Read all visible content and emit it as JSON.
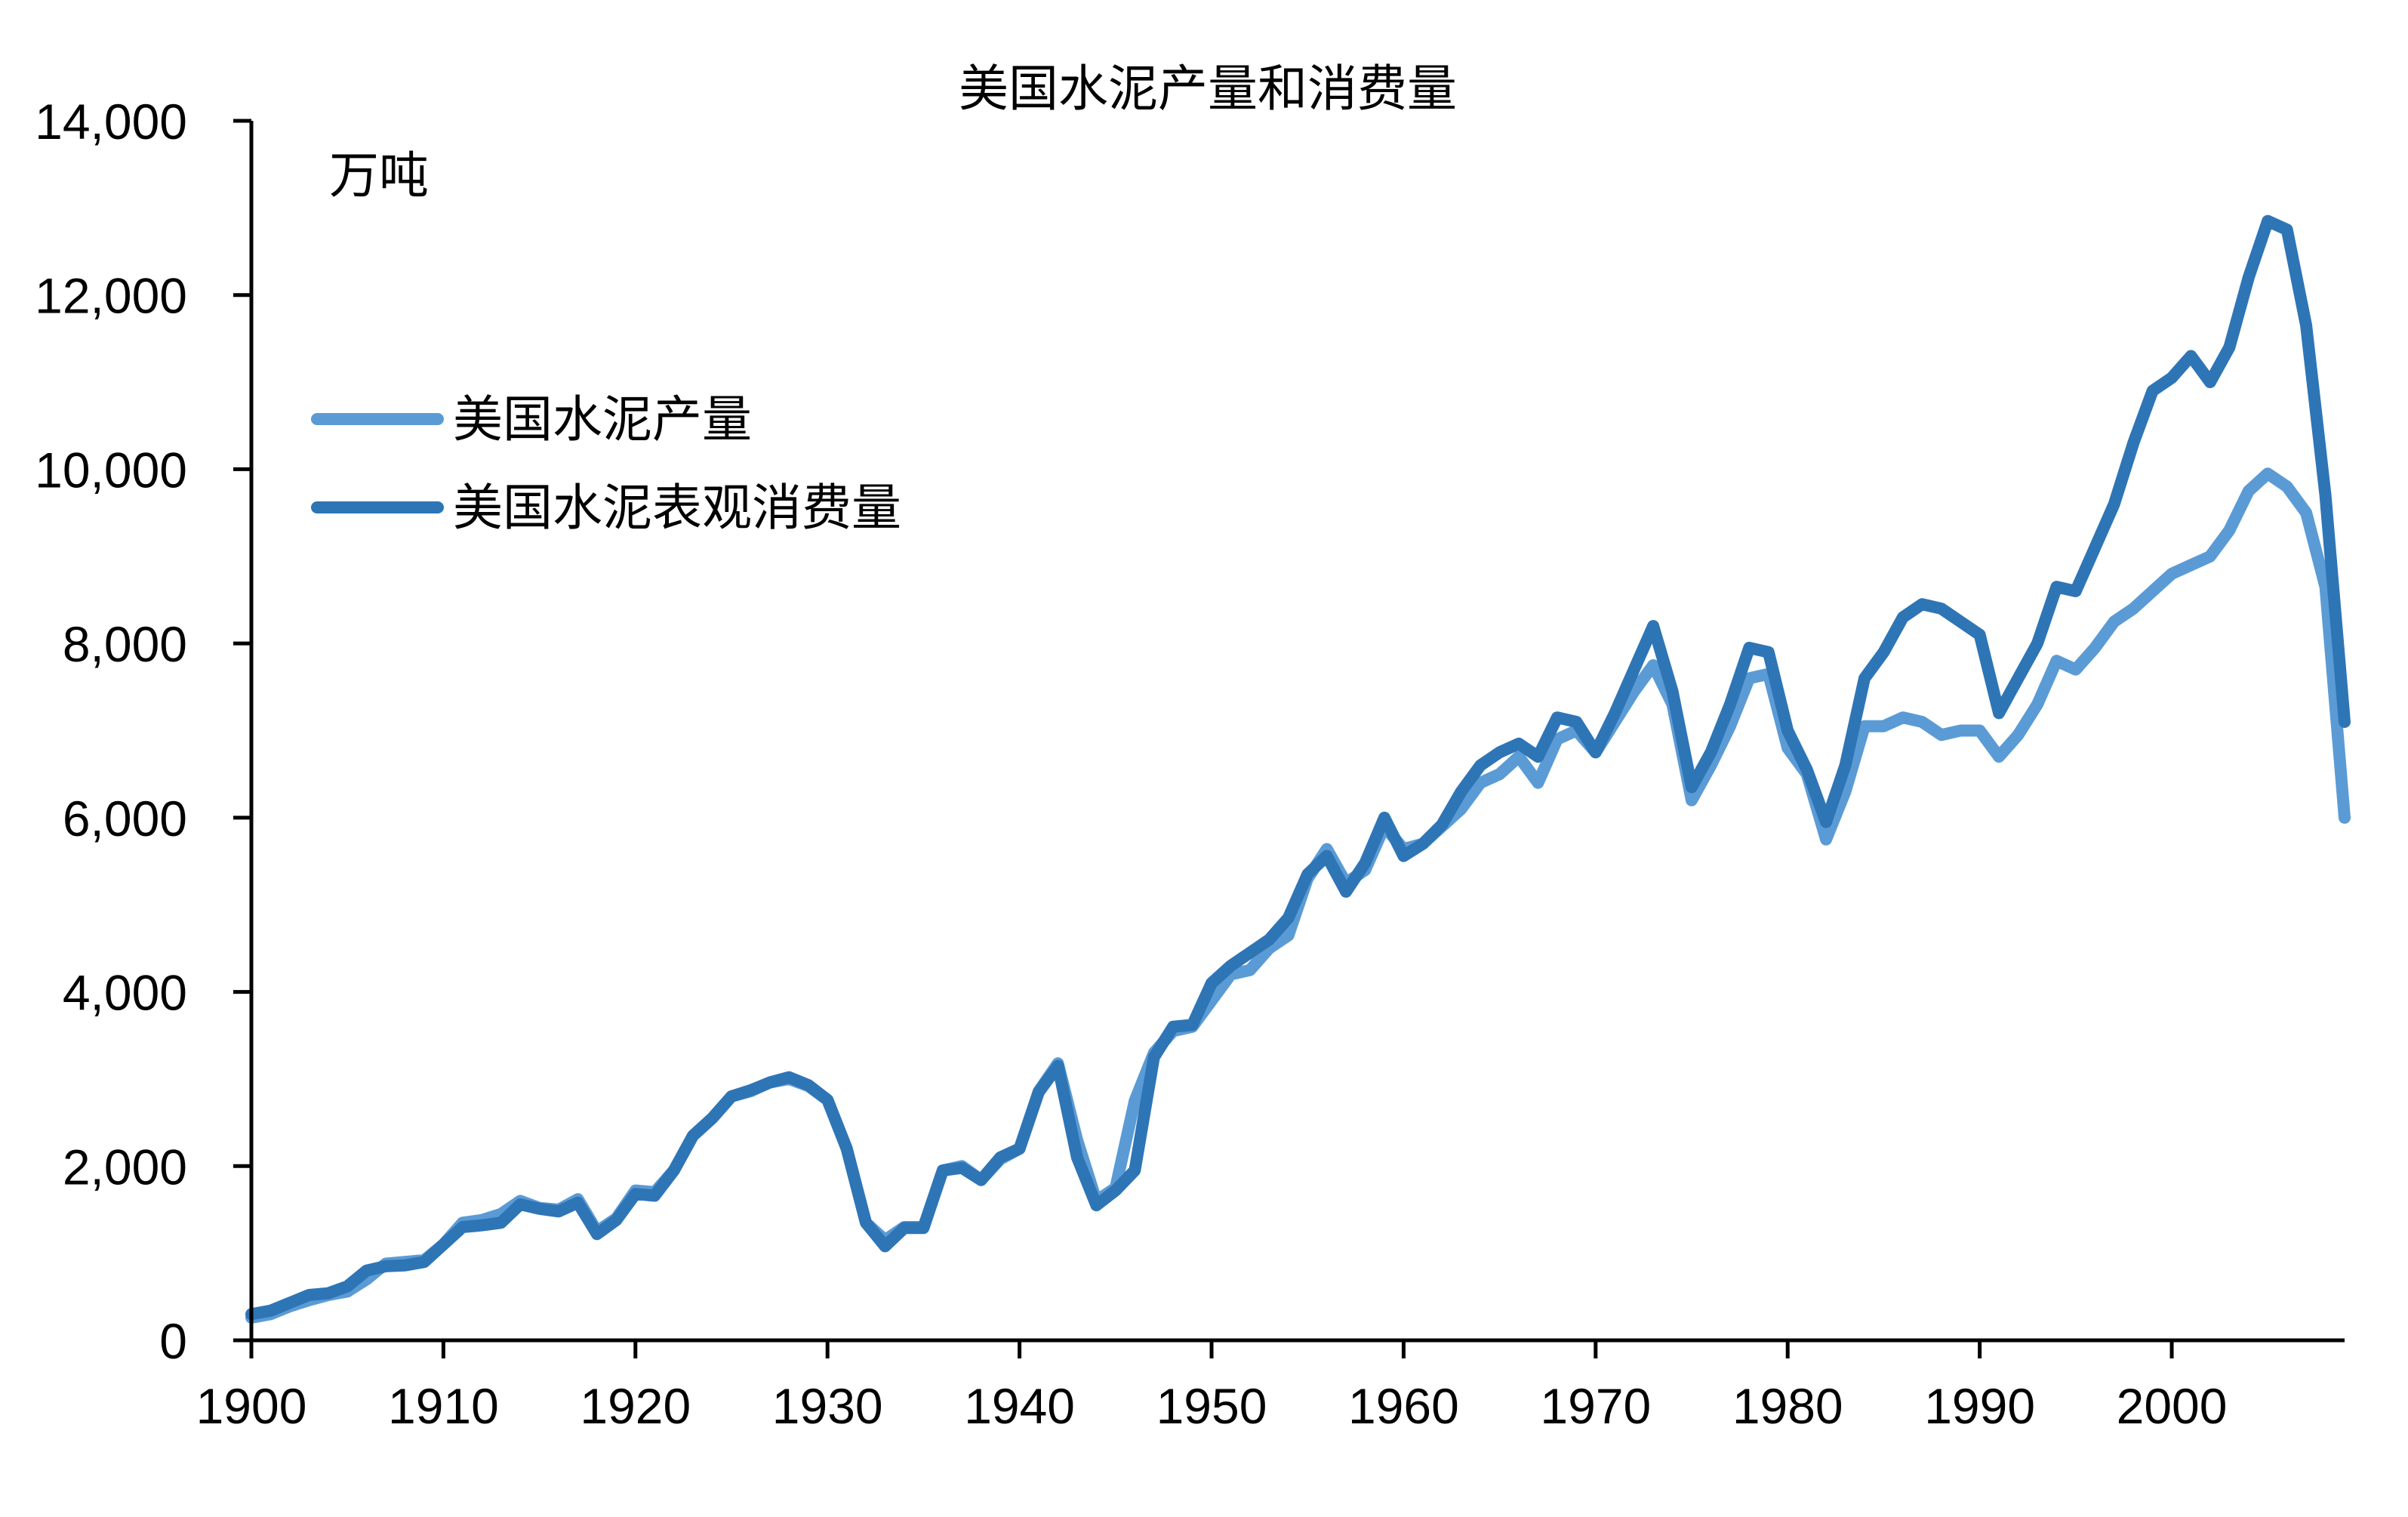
{
  "chart_data": {
    "type": "line",
    "title": "美国水泥产量和消费量",
    "unit_label": "万吨",
    "xlabel": "",
    "ylabel": "",
    "xlim": [
      1900,
      2009
    ],
    "ylim": [
      0,
      14000
    ],
    "x_ticks": [
      1900,
      1910,
      1920,
      1930,
      1940,
      1950,
      1960,
      1970,
      1980,
      1990,
      2000
    ],
    "y_ticks": [
      0,
      2000,
      4000,
      6000,
      8000,
      10000,
      12000,
      14000
    ],
    "y_tick_labels": [
      "0",
      "2,000",
      "4,000",
      "6,000",
      "8,000",
      "10,000",
      "12,000",
      "14,000"
    ],
    "grid": false,
    "legend_position": "upper-left",
    "x": [
      1900,
      1901,
      1902,
      1903,
      1904,
      1905,
      1906,
      1907,
      1908,
      1909,
      1910,
      1911,
      1912,
      1913,
      1914,
      1915,
      1916,
      1917,
      1918,
      1919,
      1920,
      1921,
      1922,
      1923,
      1924,
      1925,
      1926,
      1927,
      1928,
      1929,
      1930,
      1931,
      1932,
      1933,
      1934,
      1935,
      1936,
      1937,
      1938,
      1939,
      1940,
      1941,
      1942,
      1943,
      1944,
      1945,
      1946,
      1947,
      1948,
      1949,
      1950,
      1951,
      1952,
      1953,
      1954,
      1955,
      1956,
      1957,
      1958,
      1959,
      1960,
      1961,
      1962,
      1963,
      1964,
      1965,
      1966,
      1967,
      1968,
      1969,
      1970,
      1971,
      1972,
      1973,
      1974,
      1975,
      1976,
      1977,
      1978,
      1979,
      1980,
      1981,
      1982,
      1983,
      1984,
      1985,
      1986,
      1987,
      1988,
      1989,
      1990,
      1991,
      1992,
      1993,
      1994,
      1995,
      1996,
      1997,
      1998,
      1999,
      2000,
      2001,
      2002,
      2003,
      2004,
      2005,
      2006,
      2007,
      2008,
      2009
    ],
    "series": [
      {
        "name": "美国水泥产量",
        "color": "#5b9bd5",
        "values": [
          260,
          300,
          390,
          460,
          520,
          560,
          700,
          880,
          900,
          920,
          1100,
          1350,
          1380,
          1450,
          1600,
          1520,
          1500,
          1620,
          1250,
          1400,
          1720,
          1700,
          1950,
          2350,
          2550,
          2800,
          2860,
          2960,
          3000,
          2920,
          2760,
          2200,
          1350,
          1150,
          1300,
          1300,
          1950,
          2000,
          1840,
          2080,
          2200,
          2860,
          3180,
          2300,
          1600,
          1750,
          2750,
          3300,
          3550,
          3600,
          3900,
          4200,
          4250,
          4500,
          4650,
          5300,
          5640,
          5250,
          5400,
          5900,
          5640,
          5700,
          5900,
          6100,
          6400,
          6500,
          6700,
          6400,
          6900,
          7000,
          6750,
          7100,
          7450,
          7750,
          7300,
          6200,
          6600,
          7050,
          7600,
          7650,
          6800,
          6500,
          5750,
          6300,
          7050,
          7050,
          7150,
          7100,
          6950,
          7000,
          7000,
          6700,
          6950,
          7300,
          7800,
          7700,
          7950,
          8250,
          8400,
          8600,
          8800,
          8900,
          9000,
          9300,
          9750,
          9950,
          9800,
          9500,
          8650,
          6000
        ]
      },
      {
        "name": "美国水泥表观消费量",
        "color": "#2e75b6",
        "values": [
          300,
          340,
          430,
          520,
          540,
          620,
          800,
          850,
          860,
          900,
          1100,
          1300,
          1320,
          1350,
          1560,
          1510,
          1480,
          1580,
          1220,
          1380,
          1680,
          1660,
          1950,
          2350,
          2550,
          2800,
          2870,
          2960,
          3020,
          2930,
          2760,
          2200,
          1350,
          1080,
          1290,
          1290,
          1950,
          1980,
          1840,
          2100,
          2200,
          2850,
          3150,
          2100,
          1550,
          1720,
          1950,
          3250,
          3600,
          3620,
          4100,
          4300,
          4450,
          4600,
          4850,
          5350,
          5560,
          5150,
          5480,
          6000,
          5560,
          5700,
          5920,
          6300,
          6600,
          6750,
          6850,
          6700,
          7150,
          7100,
          6750,
          7200,
          7700,
          8200,
          7450,
          6350,
          6750,
          7300,
          7950,
          7900,
          7000,
          6550,
          5950,
          6600,
          7600,
          7900,
          8300,
          8450,
          8400,
          8250,
          8100,
          7200,
          7600,
          8000,
          8650,
          8600,
          9100,
          9600,
          10300,
          10900,
          11050,
          11300,
          11000,
          11400,
          12200,
          12850,
          12750,
          11650,
          9700,
          7100
        ]
      }
    ]
  }
}
